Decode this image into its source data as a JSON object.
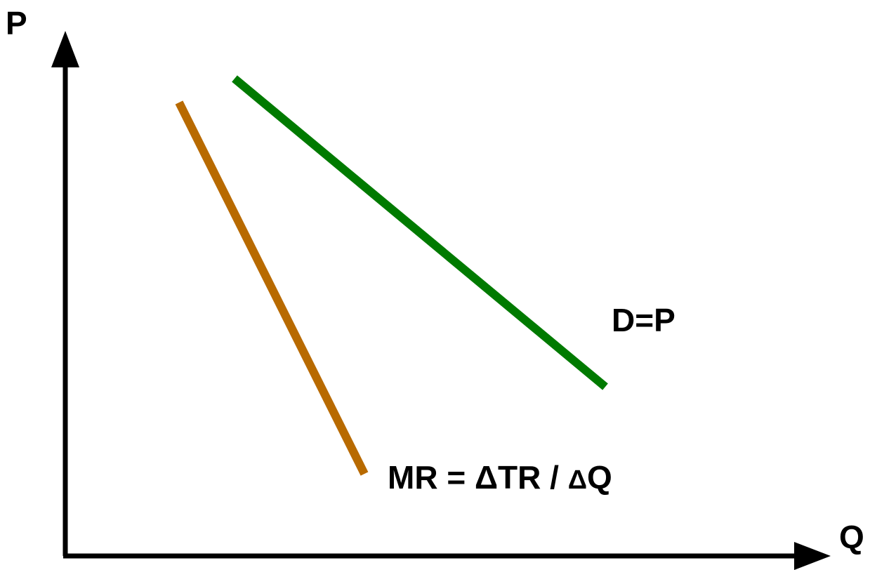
{
  "axes": {
    "y_label": "P",
    "x_label": "Q"
  },
  "curves": {
    "demand": {
      "label": "D=P",
      "color": "#007a00"
    },
    "marginal_revenue": {
      "label_prefix": "MR = ΔTR / ",
      "label_delta": "Δ",
      "label_suffix": "Q",
      "color": "#b86a00"
    }
  },
  "axis_color": "#000000"
}
